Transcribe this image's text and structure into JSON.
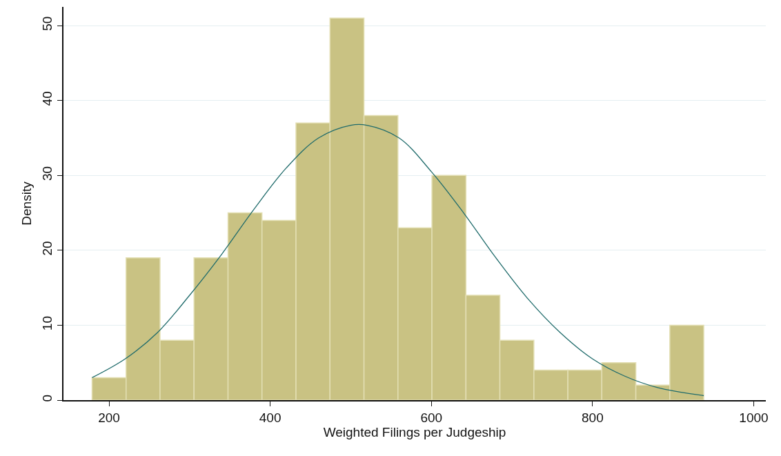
{
  "chart_data": {
    "type": "histogram",
    "xlabel": "Weighted Filings per Judgeship",
    "ylabel": "Density",
    "bins": [
      179,
      221.2,
      263.3,
      305.5,
      347.7,
      389.8,
      432,
      474.2,
      516.4,
      558.5,
      600.7,
      642.9,
      685,
      727.2,
      769.4,
      811.5,
      853.7,
      895.9,
      938
    ],
    "values": [
      3,
      19,
      8,
      19,
      25,
      24,
      37,
      51,
      38,
      23,
      30,
      14,
      8,
      4,
      4,
      5,
      2,
      10
    ],
    "color": "#c9c283",
    "series": [
      {
        "type": "line",
        "color": "#1f6b6b",
        "x": [
          179,
          220,
          260,
          300,
          340,
          380,
          420,
          460,
          500,
          520,
          560,
          600,
          640,
          680,
          720,
          760,
          800,
          840,
          880,
          938
        ],
        "values": [
          3,
          5.5,
          9,
          14,
          19.5,
          25.5,
          31,
          35,
          36.7,
          36.7,
          35,
          30.5,
          25,
          19,
          13.5,
          9,
          5.5,
          3.2,
          1.7,
          0.6
        ]
      }
    ],
    "xlim": [
      143.5,
      1015
    ],
    "xticks": [
      200,
      400,
      600,
      800,
      1000
    ],
    "ylim": [
      0,
      52.5
    ],
    "yticks": [
      0,
      10,
      20,
      30,
      40,
      50
    ],
    "grid": "y"
  }
}
